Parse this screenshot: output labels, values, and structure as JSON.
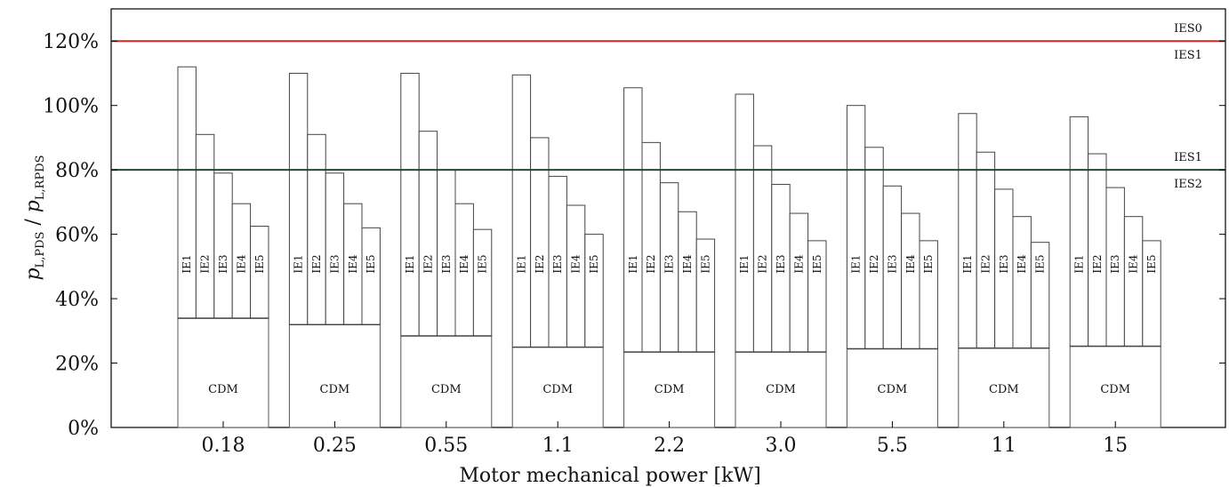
{
  "chart_data": {
    "type": "bar",
    "xlabel": "Motor mechanical power [kW]",
    "ylabel_main": "p",
    "ylabel_sub1": "L,PDS",
    "ylabel_sep": " / ",
    "ylabel_sub2": "L,RPDS",
    "ylim": [
      0,
      130
    ],
    "yticks": [
      0,
      20,
      40,
      60,
      80,
      100,
      120
    ],
    "ytick_labels": [
      "0%",
      "20%",
      "40%",
      "60%",
      "80%",
      "100%",
      "120%"
    ],
    "categories": [
      "0.18",
      "0.25",
      "0.55",
      "1.1",
      "2.2",
      "3.0",
      "5.5",
      "11",
      "15"
    ],
    "cdm_label": "CDM",
    "cdm_values": [
      34,
      32,
      28.5,
      25,
      23.5,
      23.5,
      24.5,
      24.7,
      25.3
    ],
    "ie_classes": [
      "IE1",
      "IE2",
      "IE3",
      "IE4",
      "IE5"
    ],
    "ie_values": [
      [
        112,
        91,
        79,
        69.5,
        62.5
      ],
      [
        110,
        91,
        79,
        69.5,
        62
      ],
      [
        110,
        92,
        80,
        69.5,
        61.5
      ],
      [
        109.5,
        90,
        78,
        69,
        60
      ],
      [
        105.5,
        88.5,
        76,
        67,
        58.5
      ],
      [
        103.5,
        87.5,
        75.5,
        66.5,
        58
      ],
      [
        100,
        87,
        75,
        66.5,
        58
      ],
      [
        97.5,
        85.5,
        74,
        65.5,
        57.5
      ],
      [
        96.5,
        85,
        74.5,
        65.5,
        58
      ]
    ],
    "reference_lines": [
      {
        "value": 120,
        "color": "#d62728",
        "label_above": "IES0",
        "label_below": "IES1"
      },
      {
        "value": 80,
        "color": "#1b4d2e",
        "label_above": "IES1",
        "label_below": "IES2"
      }
    ]
  }
}
